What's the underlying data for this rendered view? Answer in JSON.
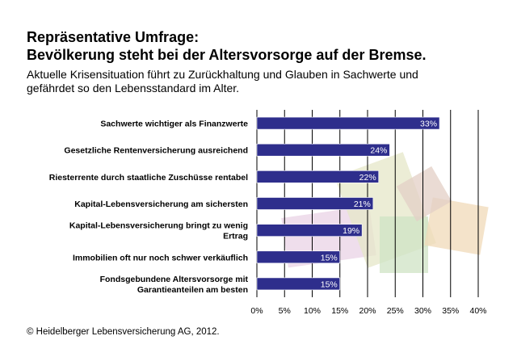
{
  "header": {
    "title_line1": "Repräsentative Umfrage:",
    "title_line2": "Bevölkerung steht bei der Altersvorsorge auf der Bremse.",
    "subtitle_line1": "Aktuelle Krisensituation führt zu Zurückhaltung und Glauben in Sachwerte und",
    "subtitle_line2": "gefährdet so den Lebensstandard im Alter."
  },
  "footer": {
    "source": "© Heidelberger Lebensversicherung AG, 2012."
  },
  "colors": {
    "bar": "#2e2e8c",
    "bar_border": "#ffffff",
    "grid": "#000000"
  },
  "chart_data": {
    "type": "bar",
    "orientation": "horizontal",
    "categories": [
      [
        "Sachwerte wichtiger als Finanzwerte"
      ],
      [
        "Gesetzliche Rentenversicherung ausreichend"
      ],
      [
        "Riesterrente durch staatliche Zuschüsse rentabel"
      ],
      [
        "Kapital-Lebensversicherung am sichersten"
      ],
      [
        "Kapital-Lebensversicherung bringt zu wenig",
        "Ertrag"
      ],
      [
        "Immobilien oft nur noch schwer verkäuflich"
      ],
      [
        "Fondsgebundene Altersvorsorge mit",
        "Garantieanteilen am besten"
      ]
    ],
    "values": [
      33,
      24,
      22,
      21,
      19,
      15,
      15
    ],
    "value_labels": [
      "33%",
      "24%",
      "22%",
      "21%",
      "19%",
      "15%",
      "15%"
    ],
    "x_ticks": [
      "0%",
      "5%",
      "10%",
      "15%",
      "20%",
      "25%",
      "30%",
      "35%",
      "40%"
    ],
    "xlim": [
      0,
      40
    ],
    "grid": true
  }
}
